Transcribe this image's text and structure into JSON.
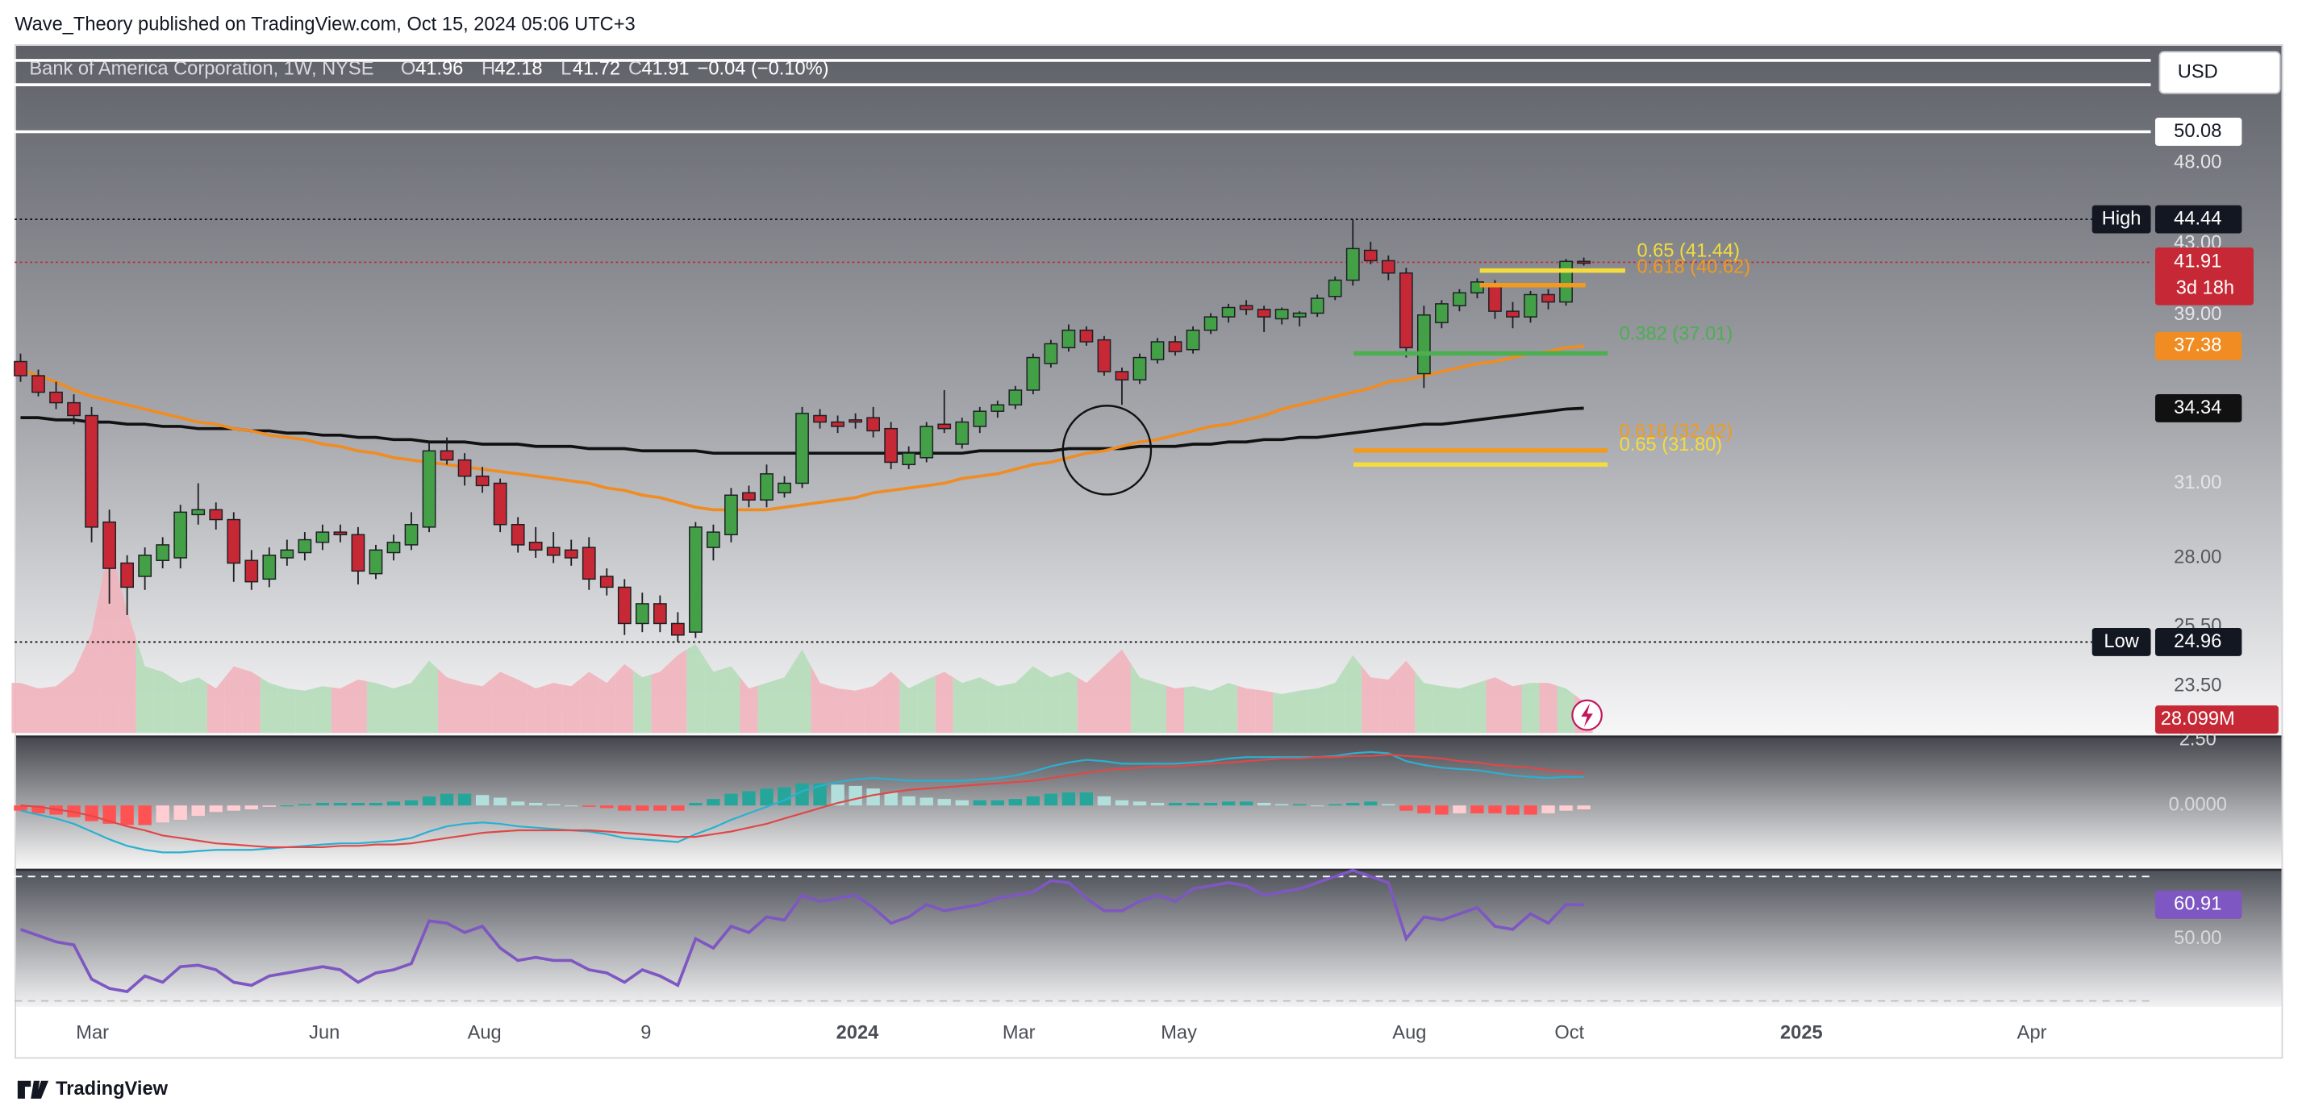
{
  "header": "Wave_Theory published on TradingView.com, Oct 15, 2024 05:06 UTC+3",
  "footer": "TradingView",
  "chart_data": {
    "type": "candlestick",
    "symbol": "Bank of America Corporation, 1W, NYSE",
    "ohlc_labels": [
      "O",
      "H",
      "L",
      "C"
    ],
    "change": "−0.04 (−0.10%)",
    "currency": "USD",
    "countdown": "3d 18h",
    "log_scale": true,
    "grid": false,
    "up_color": "#43a047",
    "down_color": "#c62835",
    "ylim": [
      22.05,
      56.42
    ],
    "yticks": [
      {
        "value": 48,
        "label": "48.00"
      },
      {
        "value": 43,
        "label": "43.00"
      },
      {
        "value": 39,
        "label": "39.00"
      },
      {
        "value": 31,
        "label": "31.00"
      },
      {
        "value": 28,
        "label": "28.00"
      },
      {
        "value": 25.5,
        "label": "25.50"
      },
      {
        "value": 23.5,
        "label": "23.50"
      }
    ],
    "time_labels": [
      "Mar",
      "Jun",
      "Aug",
      "9",
      "2024",
      "Mar",
      "May",
      "Aug",
      "Oct",
      "2025",
      "Apr"
    ],
    "ohlc": [
      [
        36.6,
        37.0,
        35.6,
        35.9
      ],
      [
        35.9,
        36.2,
        34.9,
        35.1
      ],
      [
        35.1,
        35.6,
        34.3,
        34.6
      ],
      [
        34.6,
        35.0,
        33.6,
        34.0
      ],
      [
        34.0,
        34.4,
        28.6,
        29.2
      ],
      [
        29.4,
        29.9,
        26.3,
        27.6
      ],
      [
        27.8,
        28.1,
        25.9,
        26.9
      ],
      [
        27.3,
        28.4,
        26.8,
        28.1
      ],
      [
        27.9,
        28.8,
        27.6,
        28.5
      ],
      [
        28.0,
        30.1,
        27.6,
        29.8
      ],
      [
        29.7,
        31.0,
        29.3,
        29.9
      ],
      [
        29.9,
        30.2,
        29.1,
        29.5
      ],
      [
        29.5,
        29.8,
        27.1,
        27.8
      ],
      [
        27.9,
        28.3,
        26.8,
        27.1
      ],
      [
        27.2,
        28.4,
        26.9,
        28.1
      ],
      [
        28.0,
        28.7,
        27.7,
        28.3
      ],
      [
        28.2,
        29.0,
        27.9,
        28.7
      ],
      [
        28.6,
        29.3,
        28.3,
        29.0
      ],
      [
        29.0,
        29.3,
        28.6,
        28.9
      ],
      [
        28.9,
        29.2,
        27.0,
        27.5
      ],
      [
        27.4,
        28.5,
        27.2,
        28.3
      ],
      [
        28.2,
        28.9,
        27.9,
        28.6
      ],
      [
        28.5,
        29.8,
        28.3,
        29.3
      ],
      [
        29.2,
        32.8,
        29.0,
        32.4
      ],
      [
        32.4,
        33.0,
        31.8,
        32.0
      ],
      [
        32.0,
        32.3,
        30.9,
        31.3
      ],
      [
        31.3,
        31.7,
        30.6,
        30.9
      ],
      [
        31.0,
        31.2,
        29.0,
        29.3
      ],
      [
        29.3,
        29.6,
        28.2,
        28.5
      ],
      [
        28.6,
        29.2,
        28.0,
        28.3
      ],
      [
        28.4,
        29.0,
        27.8,
        28.1
      ],
      [
        28.3,
        28.7,
        27.7,
        28.0
      ],
      [
        28.4,
        28.8,
        26.8,
        27.2
      ],
      [
        27.3,
        27.6,
        26.6,
        26.9
      ],
      [
        26.9,
        27.2,
        25.2,
        25.6
      ],
      [
        25.6,
        26.7,
        25.3,
        26.3
      ],
      [
        26.3,
        26.6,
        25.3,
        25.6
      ],
      [
        25.6,
        26.0,
        24.96,
        25.2
      ],
      [
        25.3,
        29.4,
        25.1,
        29.2
      ],
      [
        28.4,
        29.3,
        27.9,
        29.0
      ],
      [
        28.9,
        30.8,
        28.6,
        30.5
      ],
      [
        30.6,
        30.9,
        30.0,
        30.3
      ],
      [
        30.3,
        31.8,
        30.0,
        31.4
      ],
      [
        30.6,
        31.3,
        30.4,
        31.0
      ],
      [
        31.0,
        34.4,
        30.8,
        34.1
      ],
      [
        34.0,
        34.3,
        33.4,
        33.7
      ],
      [
        33.7,
        34.0,
        33.2,
        33.5
      ],
      [
        33.8,
        34.1,
        33.4,
        33.7
      ],
      [
        33.9,
        34.4,
        33.0,
        33.3
      ],
      [
        33.4,
        33.7,
        31.6,
        31.9
      ],
      [
        31.8,
        32.6,
        31.6,
        32.3
      ],
      [
        32.1,
        33.7,
        31.9,
        33.5
      ],
      [
        33.6,
        35.2,
        33.2,
        33.4
      ],
      [
        32.7,
        33.9,
        32.5,
        33.7
      ],
      [
        33.5,
        34.4,
        33.2,
        34.2
      ],
      [
        34.2,
        34.7,
        33.9,
        34.5
      ],
      [
        34.5,
        35.4,
        34.3,
        35.2
      ],
      [
        35.2,
        37.0,
        35.0,
        36.8
      ],
      [
        36.5,
        37.7,
        36.3,
        37.5
      ],
      [
        37.3,
        38.5,
        37.1,
        38.2
      ],
      [
        38.2,
        38.4,
        37.4,
        37.6
      ],
      [
        37.7,
        37.9,
        35.9,
        36.1
      ],
      [
        36.1,
        36.3,
        34.5,
        35.7
      ],
      [
        35.7,
        37.0,
        35.5,
        36.8
      ],
      [
        36.7,
        37.8,
        36.5,
        37.6
      ],
      [
        37.6,
        37.9,
        36.9,
        37.1
      ],
      [
        37.2,
        38.4,
        37.0,
        38.2
      ],
      [
        38.2,
        39.1,
        38.0,
        38.9
      ],
      [
        38.9,
        39.6,
        38.6,
        39.4
      ],
      [
        39.5,
        39.8,
        39.0,
        39.3
      ],
      [
        39.3,
        39.5,
        38.1,
        38.9
      ],
      [
        38.8,
        39.4,
        38.5,
        39.3
      ],
      [
        38.9,
        39.2,
        38.4,
        39.1
      ],
      [
        39.1,
        40.1,
        38.9,
        39.9
      ],
      [
        40.0,
        41.1,
        39.8,
        40.9
      ],
      [
        40.9,
        44.44,
        40.6,
        42.7
      ],
      [
        42.6,
        43.1,
        41.8,
        42.0
      ],
      [
        42.0,
        42.3,
        40.9,
        41.3
      ],
      [
        41.3,
        41.6,
        36.8,
        37.3
      ],
      [
        36.0,
        39.5,
        35.3,
        39.0
      ],
      [
        38.6,
        39.8,
        38.3,
        39.6
      ],
      [
        39.5,
        40.4,
        39.2,
        40.2
      ],
      [
        40.2,
        41.0,
        39.9,
        40.8
      ],
      [
        40.6,
        40.9,
        38.8,
        39.2
      ],
      [
        39.2,
        39.7,
        38.3,
        38.9
      ],
      [
        38.9,
        40.3,
        38.6,
        40.1
      ],
      [
        40.1,
        40.4,
        39.3,
        39.7
      ],
      [
        39.7,
        42.1,
        39.5,
        41.96
      ],
      [
        41.96,
        42.18,
        41.72,
        41.91
      ]
    ],
    "high": 44.44,
    "high_label": "High",
    "low": 24.96,
    "low_label": "Low",
    "hlines": [
      55.2,
      53.4,
      50.08
    ],
    "ma50": {
      "color": "#f08c22",
      "values": [
        36.2,
        35.9,
        35.6,
        35.2,
        34.9,
        34.7,
        34.5,
        34.3,
        34.1,
        33.9,
        33.7,
        33.6,
        33.4,
        33.3,
        33.1,
        33.0,
        32.9,
        32.7,
        32.6,
        32.4,
        32.3,
        32.1,
        32.0,
        31.9,
        31.8,
        31.7,
        31.6,
        31.5,
        31.4,
        31.3,
        31.2,
        31.1,
        31.0,
        30.8,
        30.7,
        30.5,
        30.4,
        30.2,
        30.0,
        29.9,
        29.9,
        29.9,
        29.9,
        30.0,
        30.1,
        30.2,
        30.3,
        30.4,
        30.6,
        30.7,
        30.8,
        30.9,
        31.0,
        31.2,
        31.3,
        31.4,
        31.6,
        31.8,
        31.9,
        32.1,
        32.3,
        32.4,
        32.6,
        32.8,
        32.9,
        33.1,
        33.3,
        33.5,
        33.6,
        33.8,
        34.0,
        34.3,
        34.5,
        34.7,
        34.9,
        35.1,
        35.3,
        35.6,
        35.7,
        35.9,
        36.1,
        36.3,
        36.5,
        36.6,
        36.8,
        37.0,
        37.1,
        37.3,
        37.38
      ]
    },
    "ma200": {
      "color": "#111111",
      "values": [
        33.9,
        33.9,
        33.8,
        33.8,
        33.7,
        33.7,
        33.6,
        33.6,
        33.5,
        33.5,
        33.4,
        33.4,
        33.4,
        33.3,
        33.3,
        33.2,
        33.2,
        33.1,
        33.1,
        33.0,
        33.0,
        32.9,
        32.9,
        32.8,
        32.8,
        32.8,
        32.7,
        32.7,
        32.7,
        32.6,
        32.6,
        32.6,
        32.5,
        32.5,
        32.5,
        32.4,
        32.4,
        32.4,
        32.4,
        32.3,
        32.3,
        32.3,
        32.3,
        32.3,
        32.3,
        32.3,
        32.3,
        32.3,
        32.3,
        32.3,
        32.3,
        32.3,
        32.3,
        32.3,
        32.4,
        32.4,
        32.4,
        32.4,
        32.4,
        32.5,
        32.5,
        32.5,
        32.5,
        32.6,
        32.6,
        32.6,
        32.7,
        32.7,
        32.8,
        32.8,
        32.9,
        32.9,
        33.0,
        33.0,
        33.1,
        33.2,
        33.3,
        33.4,
        33.5,
        33.6,
        33.6,
        33.7,
        33.8,
        33.9,
        34.0,
        34.1,
        34.2,
        34.3,
        34.34
      ]
    },
    "volume": {
      "up_color": "#b5dcb9",
      "down_color": "#f1b3bb",
      "last_label": "28.099M",
      "values": [
        45,
        40,
        42,
        55,
        90,
        170,
        110,
        60,
        55,
        45,
        50,
        40,
        60,
        55,
        45,
        40,
        38,
        42,
        40,
        48,
        45,
        40,
        45,
        65,
        50,
        45,
        42,
        55,
        48,
        40,
        45,
        42,
        55,
        45,
        62,
        50,
        55,
        70,
        80,
        55,
        60,
        40,
        45,
        50,
        75,
        45,
        40,
        38,
        42,
        55,
        40,
        48,
        55,
        45,
        50,
        42,
        45,
        60,
        50,
        55,
        45,
        60,
        75,
        50,
        45,
        40,
        42,
        38,
        45,
        40,
        38,
        35,
        38,
        40,
        45,
        70,
        50,
        48,
        65,
        45,
        42,
        40,
        45,
        50,
        42,
        45,
        45,
        40,
        28.099
      ]
    },
    "fib_levels": [
      {
        "label": "0.65 (41.44)",
        "value": 41.44,
        "color": "#f4dc3c"
      },
      {
        "label": "0.618 (40.62)",
        "value": 40.62,
        "color": "#f39a1e"
      },
      {
        "label": "0.382 (37.01)",
        "value": 37.01,
        "color": "#4caf50"
      },
      {
        "label": "0.618 (32.42)",
        "value": 32.42,
        "color": "#f39a1e"
      },
      {
        "label": "0.65 (31.80)",
        "value": 31.8,
        "color": "#f4dc3c"
      }
    ],
    "macd": {
      "ylim": [
        -2.44,
        2.67
      ],
      "yticks": [
        {
          "value": 2.5,
          "label": "2.50"
        },
        {
          "value": 0,
          "label": "0.0000"
        }
      ],
      "macd_color": "#2ab0d0",
      "signal_color": "#e04848",
      "hist_colors": [
        "#26a69a",
        "#b2dfdb",
        "#ff5252",
        "#ffcdd2"
      ],
      "macd": [
        -0.2,
        -0.35,
        -0.5,
        -0.7,
        -1.0,
        -1.3,
        -1.55,
        -1.7,
        -1.8,
        -1.8,
        -1.75,
        -1.7,
        -1.7,
        -1.7,
        -1.65,
        -1.6,
        -1.55,
        -1.5,
        -1.45,
        -1.45,
        -1.4,
        -1.35,
        -1.25,
        -1.0,
        -0.8,
        -0.7,
        -0.65,
        -0.7,
        -0.8,
        -0.85,
        -0.9,
        -0.95,
        -1.0,
        -1.1,
        -1.25,
        -1.3,
        -1.35,
        -1.4,
        -1.1,
        -0.85,
        -0.55,
        -0.3,
        -0.05,
        0.2,
        0.55,
        0.75,
        0.9,
        1.0,
        1.05,
        1.0,
        0.95,
        0.95,
        0.95,
        0.95,
        1.0,
        1.05,
        1.15,
        1.3,
        1.5,
        1.65,
        1.75,
        1.7,
        1.6,
        1.6,
        1.6,
        1.6,
        1.65,
        1.7,
        1.8,
        1.85,
        1.85,
        1.85,
        1.85,
        1.85,
        1.9,
        2.0,
        2.05,
        2.0,
        1.7,
        1.55,
        1.45,
        1.4,
        1.35,
        1.25,
        1.15,
        1.1,
        1.05,
        1.1,
        1.1
      ],
      "signal": [
        0.0,
        -0.05,
        -0.15,
        -0.25,
        -0.4,
        -0.6,
        -0.8,
        -0.95,
        -1.15,
        -1.25,
        -1.35,
        -1.45,
        -1.5,
        -1.55,
        -1.6,
        -1.6,
        -1.6,
        -1.6,
        -1.55,
        -1.55,
        -1.5,
        -1.5,
        -1.45,
        -1.35,
        -1.25,
        -1.15,
        -1.05,
        -1.0,
        -0.95,
        -0.95,
        -0.95,
        -0.95,
        -0.95,
        -1.0,
        -1.05,
        -1.1,
        -1.15,
        -1.2,
        -1.2,
        -1.1,
        -1.0,
        -0.85,
        -0.7,
        -0.5,
        -0.3,
        -0.1,
        0.1,
        0.25,
        0.4,
        0.5,
        0.6,
        0.65,
        0.7,
        0.75,
        0.8,
        0.85,
        0.9,
        0.95,
        1.05,
        1.15,
        1.25,
        1.35,
        1.4,
        1.45,
        1.5,
        1.5,
        1.55,
        1.6,
        1.65,
        1.7,
        1.75,
        1.8,
        1.8,
        1.85,
        1.85,
        1.9,
        1.9,
        1.95,
        1.9,
        1.85,
        1.8,
        1.7,
        1.65,
        1.55,
        1.5,
        1.45,
        1.35,
        1.3,
        1.25
      ],
      "hist": [
        -0.2,
        -0.3,
        -0.35,
        -0.45,
        -0.6,
        -0.7,
        -0.75,
        -0.75,
        -0.65,
        -0.55,
        -0.4,
        -0.25,
        -0.2,
        -0.15,
        -0.05,
        0,
        0.05,
        0.1,
        0.1,
        0.1,
        0.1,
        0.15,
        0.2,
        0.35,
        0.45,
        0.45,
        0.4,
        0.3,
        0.15,
        0.1,
        0.05,
        0,
        -0.05,
        -0.1,
        -0.2,
        -0.2,
        -0.2,
        -0.2,
        0.1,
        0.25,
        0.45,
        0.55,
        0.65,
        0.7,
        0.85,
        0.85,
        0.8,
        0.75,
        0.65,
        0.5,
        0.35,
        0.3,
        0.25,
        0.2,
        0.2,
        0.2,
        0.25,
        0.35,
        0.45,
        0.5,
        0.5,
        0.35,
        0.2,
        0.15,
        0.1,
        0.1,
        0.1,
        0.1,
        0.15,
        0.15,
        0.1,
        0.05,
        0.05,
        0,
        0.05,
        0.1,
        0.15,
        0.05,
        -0.2,
        -0.3,
        -0.35,
        -0.3,
        -0.3,
        -0.3,
        -0.35,
        -0.35,
        -0.3,
        -0.2,
        -0.15
      ]
    },
    "rsi": {
      "ylim": [
        28.1,
        71.9
      ],
      "yticks": [
        {
          "value": 50,
          "label": "50.00"
        }
      ],
      "bands": [
        70,
        30
      ],
      "color": "#7e57c2",
      "values": [
        53,
        51,
        49,
        48,
        37,
        34,
        33,
        38,
        36,
        41,
        41.5,
        40,
        36,
        35,
        38,
        39,
        40,
        41,
        40,
        36,
        39,
        40,
        42,
        55.7,
        55,
        52,
        54,
        47,
        43,
        44,
        43,
        43,
        40,
        39,
        36,
        40,
        38,
        35,
        50,
        47,
        54,
        52,
        57,
        56,
        64,
        62,
        63,
        64,
        60,
        55,
        57,
        61,
        59,
        60,
        61,
        63,
        64,
        65,
        68.6,
        68,
        63,
        59,
        59,
        62,
        64,
        62,
        66,
        67,
        68,
        67,
        64,
        65,
        66,
        68,
        70,
        72,
        70,
        68,
        50,
        57,
        56,
        58,
        60,
        54,
        53,
        58,
        55,
        61,
        60.91
      ]
    }
  }
}
